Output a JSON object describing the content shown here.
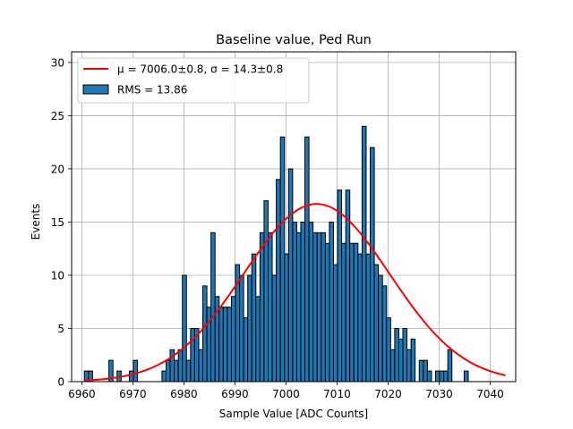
{
  "chart_data": {
    "type": "bar",
    "title": "Baseline value, Ped Run",
    "xlabel": "Sample Value [ADC Counts]",
    "ylabel": "Events",
    "xlim": [
      6958.0,
      7045.0
    ],
    "ylim": [
      0,
      31
    ],
    "xticks": [
      6960,
      6970,
      6980,
      6990,
      7000,
      7010,
      7020,
      7030,
      7040
    ],
    "yticks": [
      0,
      5,
      10,
      15,
      20,
      25,
      30
    ],
    "grid": true,
    "legend_position": "upper-left",
    "bin_start": 6960.5,
    "bin_width": 0.8,
    "values": [
      1,
      1,
      0,
      0,
      0,
      0,
      2,
      0,
      1,
      0,
      0,
      1,
      2,
      0,
      0,
      0,
      0,
      0,
      0,
      1,
      2,
      3,
      2,
      3,
      10,
      2,
      5,
      5,
      3,
      9,
      7,
      14,
      8,
      7,
      7,
      7,
      8,
      11,
      10,
      6,
      10,
      12,
      8,
      14,
      17,
      14,
      10,
      19,
      23,
      12,
      20,
      15,
      14,
      15,
      23,
      15,
      14,
      14,
      14,
      13,
      15,
      11,
      18,
      13,
      18,
      13,
      13,
      12,
      24,
      12,
      22,
      11,
      10,
      9,
      6,
      3,
      5,
      4,
      5,
      3,
      4,
      0,
      2,
      2,
      1,
      0,
      1,
      1,
      1,
      3,
      0,
      0,
      0,
      1
    ],
    "fit_curve": {
      "type": "gaussian",
      "mu": 7006.0,
      "sigma": 14.3,
      "amplitude": 16.7,
      "x_range": [
        6960.5,
        7043.0
      ],
      "color": "#ff0000"
    },
    "bar_color": "#1f77b4",
    "bar_edge_color": "#000000",
    "legend": [
      {
        "label": "μ = 7006.0±0.8, σ = 14.3±0.8",
        "kind": "line",
        "color": "#ff0000"
      },
      {
        "label": "RMS = 13.86",
        "kind": "patch",
        "color": "#1f77b4"
      }
    ]
  }
}
